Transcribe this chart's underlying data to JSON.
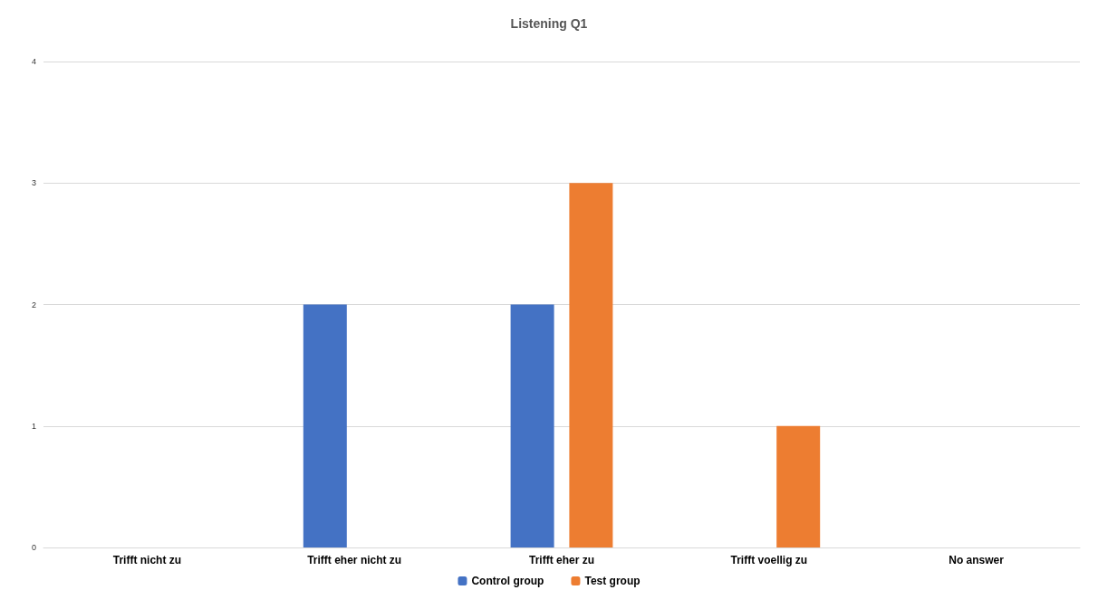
{
  "chart_data": {
    "type": "bar",
    "title": "Listening Q1",
    "categories": [
      "Trifft nicht zu",
      "Trifft eher nicht zu",
      "Trifft eher zu",
      "Trifft voellig zu",
      "No answer"
    ],
    "series": [
      {
        "name": "Control group",
        "color": "#4472c4",
        "values": [
          0,
          2,
          2,
          0,
          0
        ]
      },
      {
        "name": "Test group",
        "color": "#ed7d31",
        "values": [
          0,
          0,
          3,
          1,
          0
        ]
      }
    ],
    "ylim": [
      0,
      4
    ],
    "yticks": [
      0,
      1,
      2,
      3,
      4
    ],
    "grid": "y",
    "legend": "bottom"
  }
}
